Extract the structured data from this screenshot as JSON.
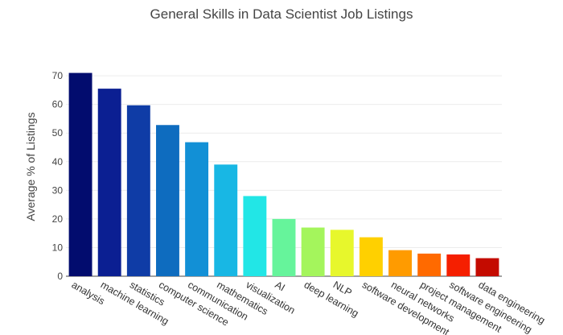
{
  "chart_data": {
    "type": "bar",
    "title": "General Skills in Data Scientist Job Listings",
    "xlabel": "",
    "ylabel": "Average % of Listings",
    "ylim": [
      0,
      72
    ],
    "yticks": [
      0,
      10,
      20,
      30,
      40,
      50,
      60,
      70
    ],
    "grid": true,
    "categories": [
      "analysis",
      "machine learning",
      "statistics",
      "computer science",
      "communication",
      "mathematics",
      "visualization",
      "AI",
      "deep learning",
      "NLP",
      "software development",
      "neural networks",
      "project management",
      "software engineering",
      "data engineering"
    ],
    "values": [
      71,
      65.5,
      59.7,
      52.8,
      46.8,
      39,
      28,
      20,
      17,
      16.2,
      13.6,
      9.1,
      7.9,
      7.6,
      6.3
    ],
    "colors": [
      "#020c6e",
      "#0b1f92",
      "#0f3ca6",
      "#0e6cbf",
      "#1290d6",
      "#18b7e4",
      "#22e6e6",
      "#66f49b",
      "#a4f55c",
      "#e7f72c",
      "#ffd000",
      "#ff9b00",
      "#ff6a00",
      "#f51f00",
      "#c40b00"
    ]
  }
}
